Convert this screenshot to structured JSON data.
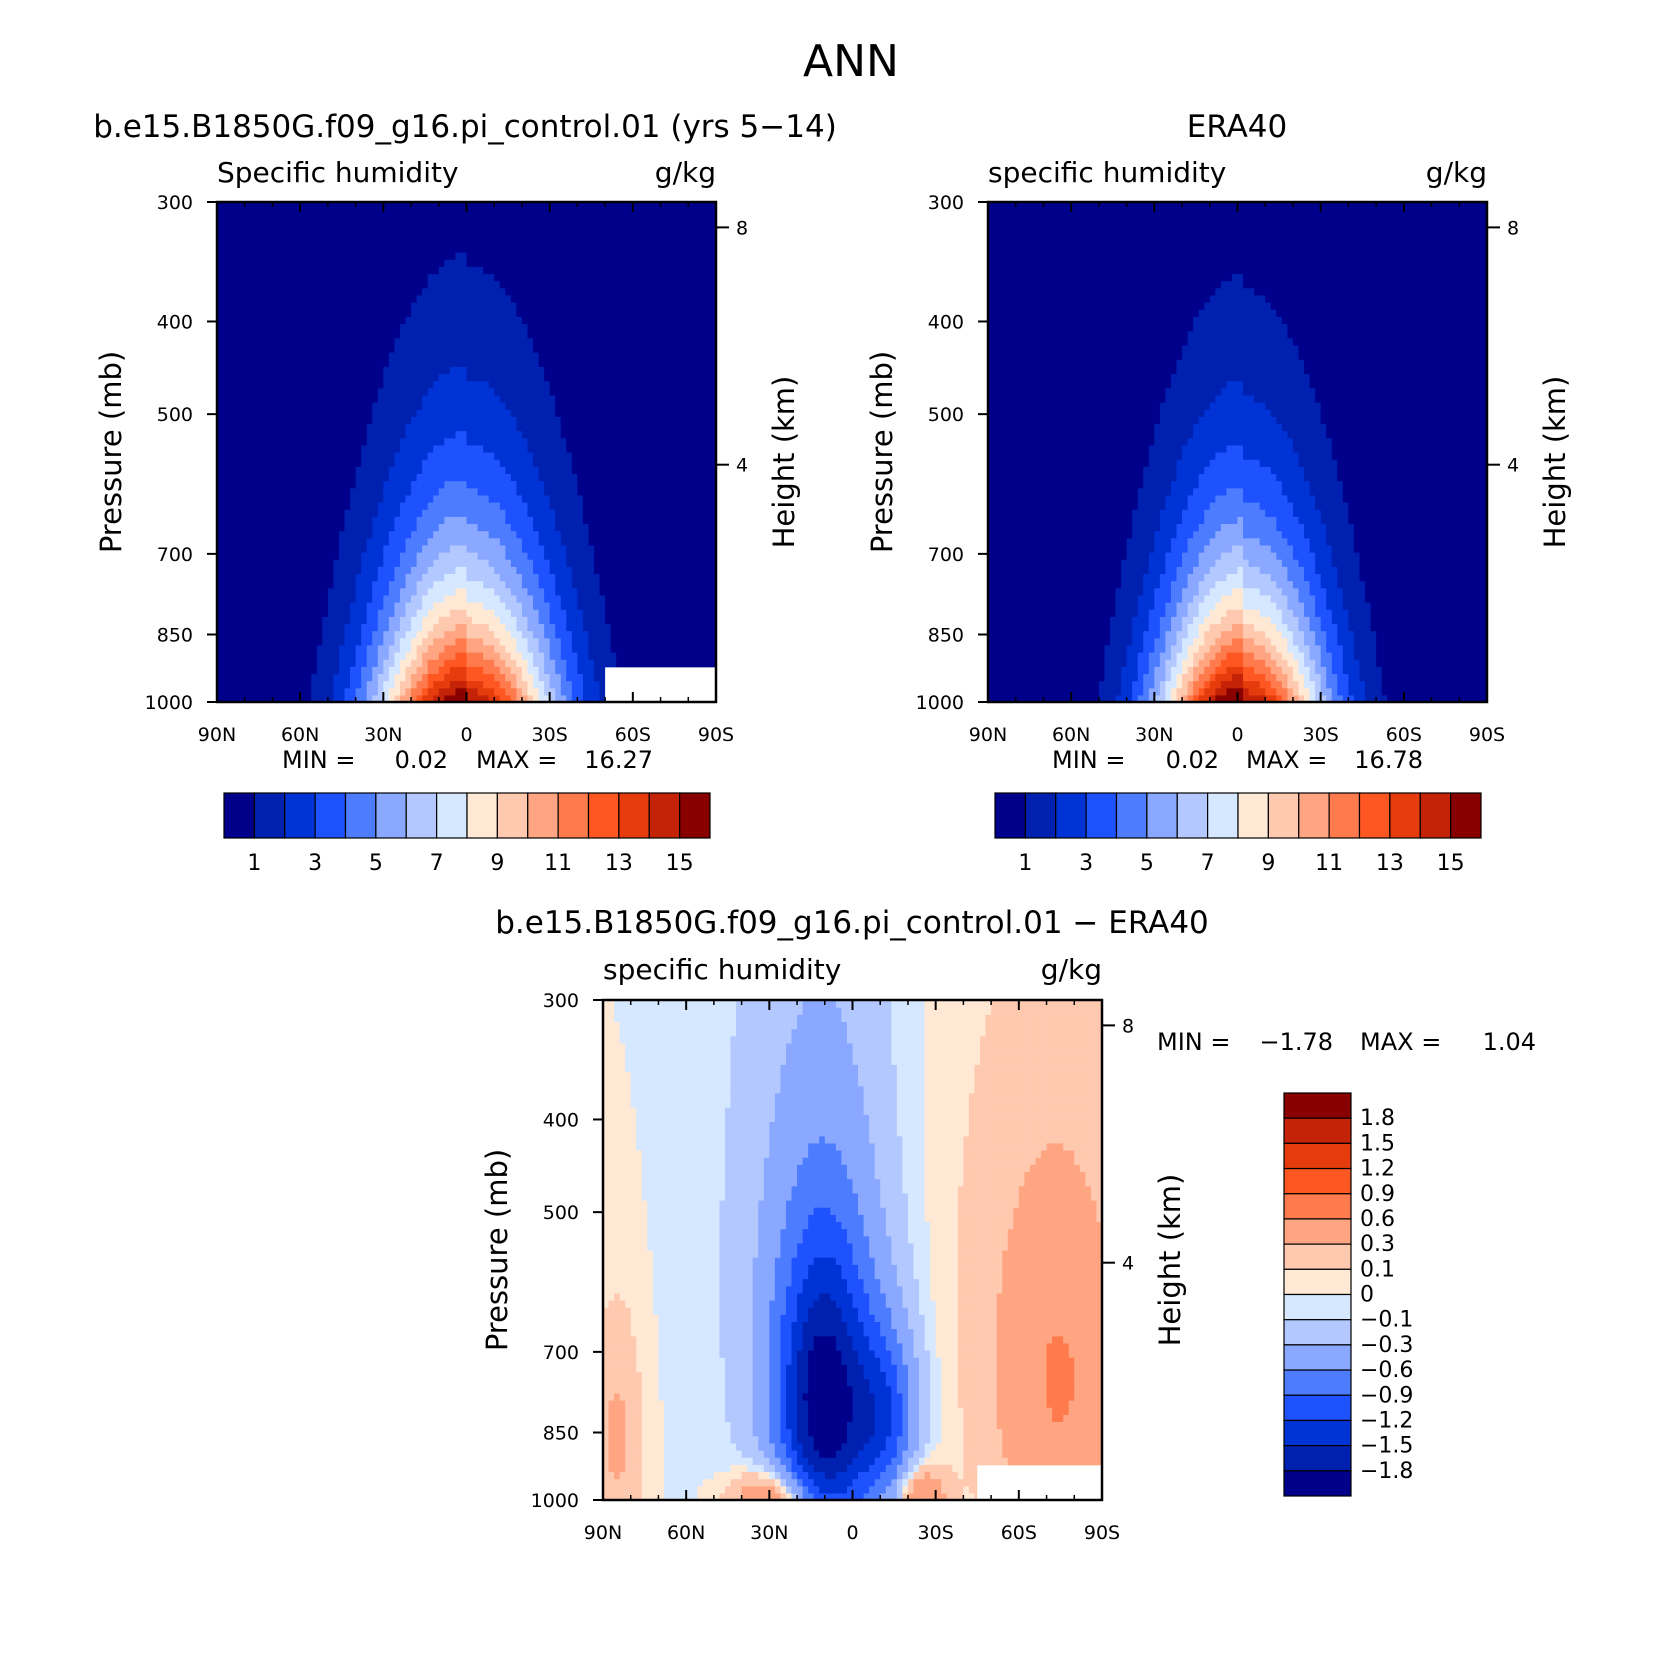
{
  "figure": {
    "title": "ANN",
    "lat_ticks": [
      "90N",
      "60N",
      "30N",
      "0",
      "30S",
      "60S",
      "90S"
    ],
    "pressure_ticks": [
      300,
      400,
      500,
      700,
      850,
      1000
    ],
    "height_ticks": [
      8,
      4
    ],
    "left_axis_label": "Pressure (mb)",
    "right_axis_label": "Height (km)"
  },
  "chart_data": [
    {
      "type": "heatmap",
      "name": "model",
      "title": "b.e15.B1850G.f09_g16.pi_control.01 (yrs 5−14)",
      "left_subtitle": "Specific humidity",
      "right_subtitle": "g/kg",
      "xlabel": "",
      "ylabel": "Pressure (mb)",
      "ylabel_right": "Height (km)",
      "x_range": [
        90,
        -90
      ],
      "y_range": [
        1000,
        300
      ],
      "y_scale": "log",
      "min_label": "MIN =",
      "min_value": "0.02",
      "max_label": "MAX =",
      "max_value": "16.27",
      "field": {
        "max": 16.27,
        "lat_center": 0,
        "lat_width": 24,
        "scale_height": 1.7,
        "nh_factor": 1.0,
        "sh_factor": 0.93
      },
      "missing_region": {
        "lat": [
          -50,
          -90
        ],
        "pressure": [
          1000,
          920
        ]
      },
      "levels": [
        1,
        2,
        3,
        4,
        5,
        6,
        7,
        8,
        9,
        10,
        11,
        12,
        13,
        14,
        15
      ],
      "colorbar_labels": [
        "1",
        "3",
        "5",
        "7",
        "9",
        "11",
        "13",
        "15"
      ]
    },
    {
      "type": "heatmap",
      "name": "obs",
      "title": "ERA40",
      "left_subtitle": "specific humidity",
      "right_subtitle": "g/kg",
      "xlabel": "",
      "ylabel": "Pressure (mb)",
      "ylabel_right": "Height (km)",
      "x_range": [
        90,
        -90
      ],
      "y_range": [
        1000,
        300
      ],
      "y_scale": "log",
      "min_label": "MIN =",
      "min_value": "0.02",
      "max_label": "MAX =",
      "max_value": "16.78",
      "field": {
        "max": 16.78,
        "lat_center": -2,
        "lat_width": 22,
        "scale_height": 1.8,
        "nh_factor": 1.0,
        "sh_factor": 0.9
      },
      "levels": [
        1,
        2,
        3,
        4,
        5,
        6,
        7,
        8,
        9,
        10,
        11,
        12,
        13,
        14,
        15
      ],
      "colorbar_labels": [
        "1",
        "3",
        "5",
        "7",
        "9",
        "11",
        "13",
        "15"
      ]
    },
    {
      "type": "heatmap",
      "name": "difference",
      "title": "b.e15.B1850G.f09_g16.pi_control.01 − ERA40",
      "left_subtitle": "specific humidity",
      "right_subtitle": "g/kg",
      "xlabel": "",
      "ylabel": "Pressure (mb)",
      "ylabel_right": "Height (km)",
      "x_range": [
        90,
        -90
      ],
      "y_range": [
        1000,
        300
      ],
      "y_scale": "log",
      "min_label": "MIN =",
      "min_value": "−1.78",
      "max_label": "MAX =",
      "max_value": "1.04",
      "missing_region": {
        "lat": [
          -45,
          -90
        ],
        "pressure": [
          1000,
          920
        ]
      },
      "anomalies": [
        {
          "lat": 10,
          "p": 800,
          "dlat": 12,
          "dp": 200,
          "amp": -1.85
        },
        {
          "lat": -12,
          "p": 820,
          "dlat": 8,
          "dp": 120,
          "amp": -0.9
        },
        {
          "lat": 12,
          "p": 550,
          "dlat": 22,
          "dp": 300,
          "amp": -0.35
        },
        {
          "lat": -75,
          "p": 760,
          "dlat": 18,
          "dp": 260,
          "amp": 0.6
        },
        {
          "lat": -40,
          "p": 500,
          "dlat": 30,
          "dp": 260,
          "amp": 0.08
        },
        {
          "lat": 28,
          "p": 1000,
          "dlat": 10,
          "dp": 50,
          "amp": 0.9
        },
        {
          "lat": -25,
          "p": 990,
          "dlat": 6,
          "dp": 50,
          "amp": 0.7
        },
        {
          "lat": 85,
          "p": 860,
          "dlat": 6,
          "dp": 160,
          "amp": 0.35
        }
      ],
      "levels": [
        -1.8,
        -1.5,
        -1.2,
        -0.9,
        -0.6,
        -0.3,
        -0.1,
        0,
        0.1,
        0.3,
        0.6,
        0.9,
        1.2,
        1.5,
        1.8
      ],
      "colorbar_labels": [
        "1.8",
        "1.5",
        "1.2",
        "0.9",
        "0.6",
        "0.3",
        "0.1",
        "0",
        "−0.1",
        "−0.3",
        "−0.6",
        "−0.9",
        "−1.2",
        "−1.5",
        "−1.8"
      ]
    }
  ],
  "colors": {
    "palette": [
      "#00008b",
      "#0020b0",
      "#0033d6",
      "#1f52ff",
      "#4d7cff",
      "#8aa8ff",
      "#b3c8ff",
      "#d5e8ff",
      "#ffe9d5",
      "#ffc9b0",
      "#ffa582",
      "#ff7a4d",
      "#ff5722",
      "#e63c0d",
      "#c42308",
      "#880000"
    ],
    "axis": "#000000",
    "missing": "#ffffff"
  }
}
